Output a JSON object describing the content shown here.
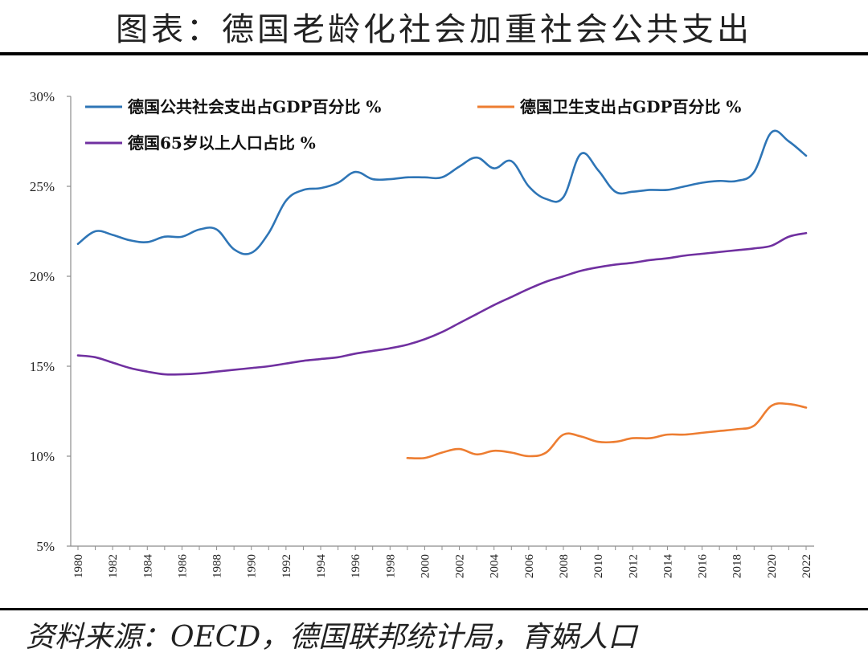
{
  "title": "图表：德国老龄化社会加重社会公共支出",
  "source": "资料来源：OECD，德国联邦统计局，育娲人口",
  "chart_data": {
    "type": "line",
    "title": "图表：德国老龄化社会加重社会公共支出",
    "xlabel": "",
    "ylabel": "",
    "ylim": [
      5,
      30
    ],
    "yticks": [
      5,
      10,
      15,
      20,
      25,
      30
    ],
    "ytick_labels": [
      "5%",
      "10%",
      "15%",
      "20%",
      "25%",
      "30%"
    ],
    "xlim": [
      1980,
      2022
    ],
    "xtick_labels": [
      "1980",
      "1982",
      "1984",
      "1986",
      "1988",
      "1990",
      "1992",
      "1994",
      "1996",
      "1998",
      "2000",
      "2002",
      "2004",
      "2006",
      "2008",
      "2010",
      "2012",
      "2014",
      "2016",
      "2018",
      "2020",
      "2022"
    ],
    "grid": false,
    "legend_position": "top-left",
    "series": [
      {
        "name": "德国公共社会支出占GDP百分比 %",
        "color": "#2E75B6",
        "x": [
          1980,
          1981,
          1982,
          1983,
          1984,
          1985,
          1986,
          1987,
          1988,
          1989,
          1990,
          1991,
          1992,
          1993,
          1994,
          1995,
          1996,
          1997,
          1998,
          1999,
          2000,
          2001,
          2002,
          2003,
          2004,
          2005,
          2006,
          2007,
          2008,
          2009,
          2010,
          2011,
          2012,
          2013,
          2014,
          2015,
          2016,
          2017,
          2018,
          2019,
          2020,
          2021,
          2022
        ],
        "values": [
          21.8,
          22.5,
          22.3,
          22.0,
          21.9,
          22.2,
          22.2,
          22.6,
          22.6,
          21.5,
          21.3,
          22.4,
          24.2,
          24.8,
          24.9,
          25.2,
          25.8,
          25.4,
          25.4,
          25.5,
          25.5,
          25.5,
          26.1,
          26.6,
          26.0,
          26.4,
          25.0,
          24.3,
          24.4,
          26.8,
          25.9,
          24.7,
          24.7,
          24.8,
          24.8,
          25.0,
          25.2,
          25.3,
          25.3,
          25.8,
          28.0,
          27.5,
          26.7
        ]
      },
      {
        "name": "德国卫生支出占GDP百分比 %",
        "color": "#ED7D31",
        "x": [
          1999,
          2000,
          2001,
          2002,
          2003,
          2004,
          2005,
          2006,
          2007,
          2008,
          2009,
          2010,
          2011,
          2012,
          2013,
          2014,
          2015,
          2016,
          2017,
          2018,
          2019,
          2020,
          2021,
          2022
        ],
        "values": [
          9.9,
          9.9,
          10.2,
          10.4,
          10.1,
          10.3,
          10.2,
          10.0,
          10.2,
          11.2,
          11.1,
          10.8,
          10.8,
          11.0,
          11.0,
          11.2,
          11.2,
          11.3,
          11.4,
          11.5,
          11.7,
          12.8,
          12.9,
          12.7
        ]
      },
      {
        "name": "德国65岁以上人口占比 %",
        "color": "#7030A0",
        "x": [
          1980,
          1981,
          1982,
          1983,
          1984,
          1985,
          1986,
          1987,
          1988,
          1989,
          1990,
          1991,
          1992,
          1993,
          1994,
          1995,
          1996,
          1997,
          1998,
          1999,
          2000,
          2001,
          2002,
          2003,
          2004,
          2005,
          2006,
          2007,
          2008,
          2009,
          2010,
          2011,
          2012,
          2013,
          2014,
          2015,
          2016,
          2017,
          2018,
          2019,
          2020,
          2021,
          2022
        ],
        "values": [
          15.6,
          15.5,
          15.2,
          14.9,
          14.7,
          14.55,
          14.55,
          14.6,
          14.7,
          14.8,
          14.9,
          15.0,
          15.15,
          15.3,
          15.4,
          15.5,
          15.7,
          15.85,
          16.0,
          16.2,
          16.5,
          16.9,
          17.4,
          17.9,
          18.4,
          18.85,
          19.3,
          19.7,
          20.0,
          20.3,
          20.5,
          20.65,
          20.75,
          20.9,
          21.0,
          21.15,
          21.25,
          21.35,
          21.45,
          21.55,
          21.7,
          22.2,
          22.4
        ]
      }
    ]
  }
}
